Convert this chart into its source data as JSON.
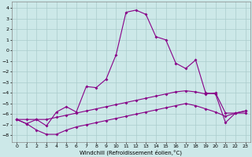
{
  "xlabel": "Windchill (Refroidissement éolien,°C)",
  "background_color": "#cce8e8",
  "grid_color": "#aacccc",
  "line_color": "#880088",
  "xlim": [
    -0.5,
    23.5
  ],
  "ylim": [
    -8.6,
    4.6
  ],
  "yticks": [
    -8,
    -7,
    -6,
    -5,
    -4,
    -3,
    -2,
    -1,
    0,
    1,
    2,
    3,
    4
  ],
  "xticks": [
    0,
    1,
    2,
    3,
    4,
    5,
    6,
    7,
    8,
    9,
    10,
    11,
    12,
    13,
    14,
    15,
    16,
    17,
    18,
    19,
    20,
    21,
    22,
    23
  ],
  "line1_x": [
    0,
    1,
    2,
    3,
    4,
    5,
    6,
    7,
    8,
    9,
    10,
    11,
    12,
    13,
    14,
    15,
    16,
    17,
    18,
    19,
    20,
    21,
    22,
    23
  ],
  "line1_y": [
    -6.5,
    -6.9,
    -6.5,
    -7.1,
    -5.8,
    -5.3,
    -5.8,
    -3.4,
    -3.5,
    -2.7,
    -0.4,
    3.6,
    3.8,
    3.4,
    1.3,
    1.0,
    -1.2,
    -1.7,
    -0.9,
    -4.0,
    -4.1,
    -6.8,
    -5.9,
    -5.9
  ],
  "line2_x": [
    0,
    1,
    2,
    3,
    4,
    5,
    6,
    7,
    8,
    9,
    10,
    11,
    12,
    13,
    14,
    15,
    16,
    17,
    18,
    19,
    20,
    21,
    22,
    23
  ],
  "line2_y": [
    -6.5,
    -6.5,
    -6.5,
    -6.5,
    -6.3,
    -6.1,
    -5.9,
    -5.7,
    -5.5,
    -5.3,
    -5.1,
    -4.9,
    -4.7,
    -4.5,
    -4.3,
    -4.1,
    -3.9,
    -3.8,
    -3.9,
    -4.1,
    -4.0,
    -5.9,
    -5.9,
    -5.7
  ],
  "line3_x": [
    0,
    1,
    2,
    3,
    4,
    5,
    6,
    7,
    8,
    9,
    10,
    11,
    12,
    13,
    14,
    15,
    16,
    17,
    18,
    19,
    20,
    21,
    22,
    23
  ],
  "line3_y": [
    -6.5,
    -6.9,
    -7.5,
    -7.9,
    -7.9,
    -7.5,
    -7.2,
    -7.0,
    -6.8,
    -6.6,
    -6.4,
    -6.2,
    -6.0,
    -5.8,
    -5.6,
    -5.4,
    -5.2,
    -5.0,
    -5.2,
    -5.5,
    -5.8,
    -6.2,
    -5.9,
    -5.7
  ]
}
